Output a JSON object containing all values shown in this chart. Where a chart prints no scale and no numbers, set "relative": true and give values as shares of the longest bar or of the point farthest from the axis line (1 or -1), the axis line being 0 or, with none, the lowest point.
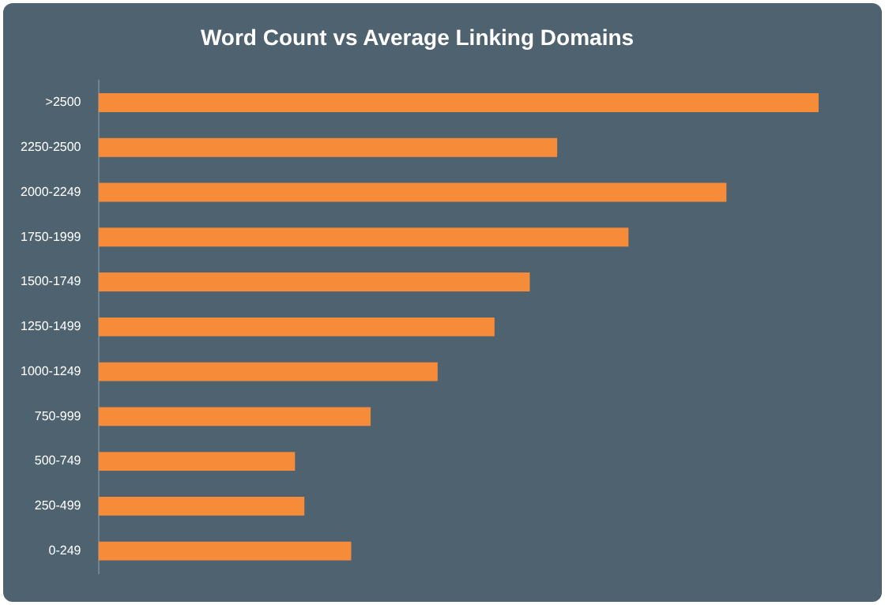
{
  "chart_data": {
    "type": "bar",
    "orientation": "horizontal",
    "relative": true,
    "title": "Word Count vs Average Linking Domains",
    "categories": [
      ">2500",
      "2250-2500",
      "2000-2249",
      "1750-1999",
      "1500-1749",
      "1250-1499",
      "1000-1249",
      "750-999",
      "500-749",
      "250-499",
      "0-249"
    ],
    "values": [
      1,
      0.637,
      0.872,
      0.736,
      0.599,
      0.55,
      0.471,
      0.378,
      0.273,
      0.286,
      0.351
    ],
    "color": "#f68b3a"
  }
}
